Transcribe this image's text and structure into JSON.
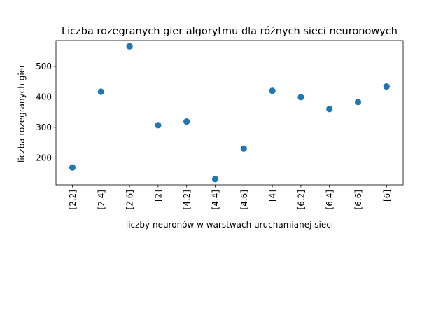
{
  "chart_data": {
    "type": "scatter",
    "title": "Liczba rozegranych gier algorytmu dla różnych sieci neuronowych",
    "xlabel": "liczby neuronów w warstwach uruchamianej sieci",
    "ylabel": "liczba rozegranych gier",
    "categories": [
      "[2.2]",
      "[2.4]",
      "[2.6]",
      "[2]",
      "[4.2]",
      "[4.4]",
      "[4.6]",
      "[4]",
      "[6.2]",
      "[6.4]",
      "[6.6]",
      "[6]"
    ],
    "values": [
      168,
      417,
      566,
      307,
      319,
      130,
      230,
      420,
      399,
      360,
      383,
      434
    ],
    "ylim": [
      111,
      585
    ],
    "yticks": [
      200,
      300,
      400,
      500
    ],
    "grid": false,
    "legend": "none",
    "marker_color": "#1f77b4"
  }
}
